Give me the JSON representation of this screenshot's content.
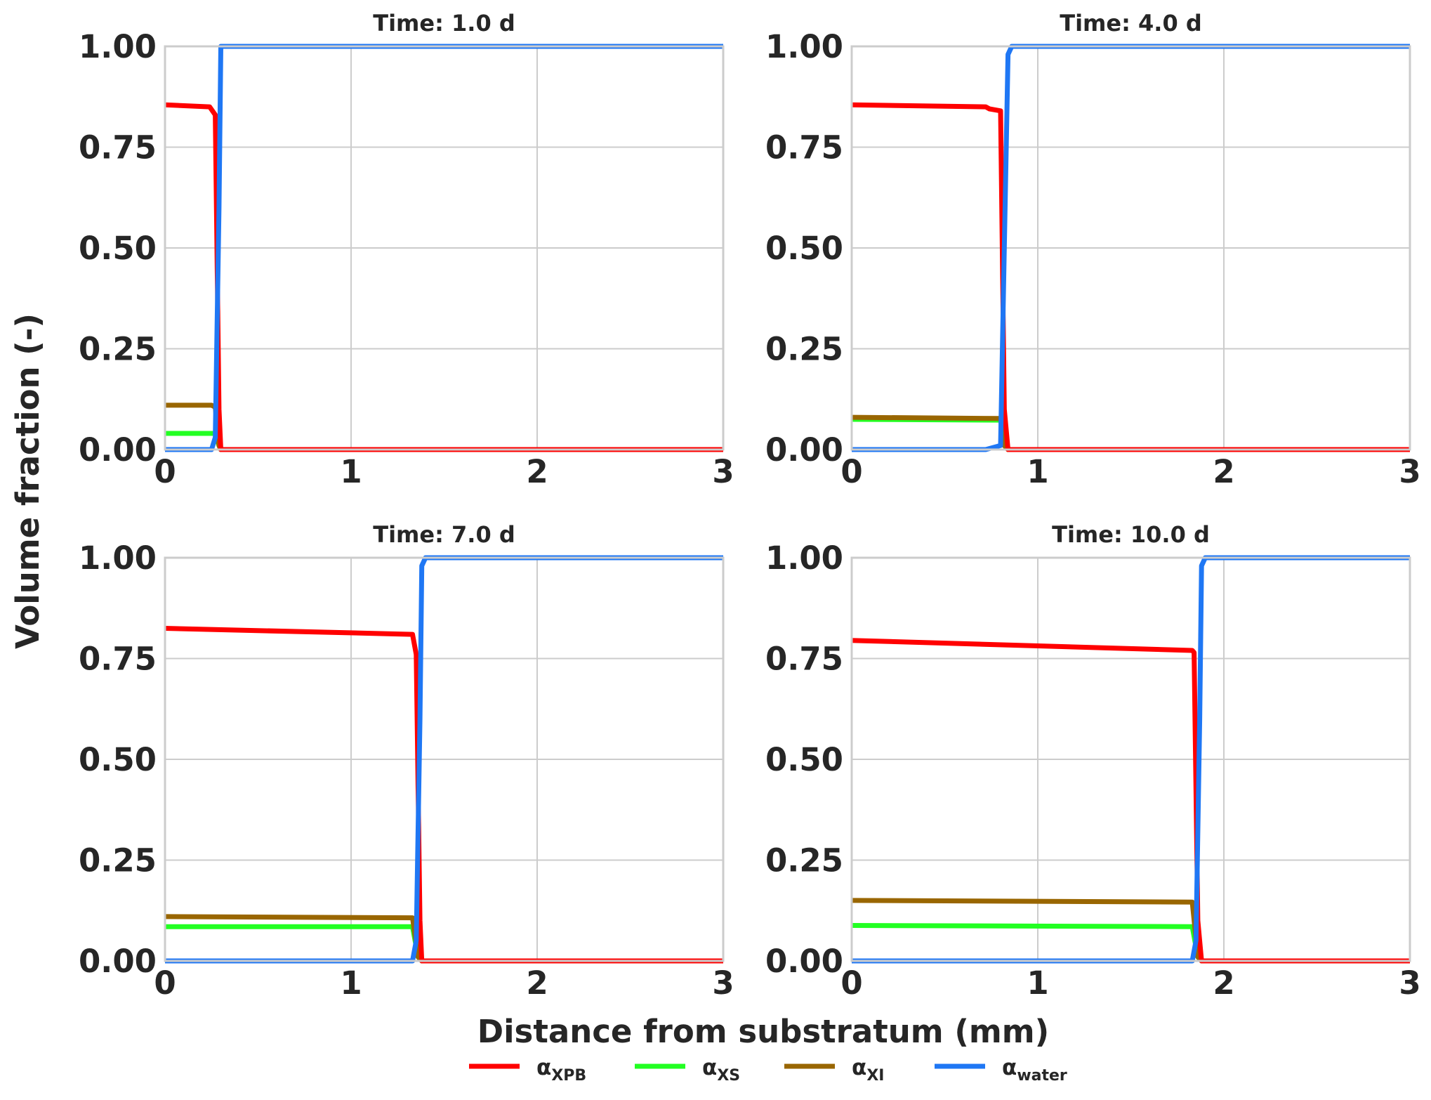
{
  "chart_data": {
    "type": "line",
    "xlabel": "Distance from substratum (mm)",
    "ylabel": "Volume fraction (-)",
    "xlim": [
      0,
      3
    ],
    "ylim": [
      0,
      1
    ],
    "xticks": [
      "0",
      "1",
      "2",
      "3"
    ],
    "yticks": [
      "0.00",
      "0.25",
      "0.50",
      "0.75",
      "1.00"
    ],
    "grid": true,
    "legend": {
      "position": "bottom-center",
      "entries": [
        {
          "key": "xpb",
          "base": "α",
          "sub": "XPB",
          "color": "#ff0000"
        },
        {
          "key": "xs",
          "base": "α",
          "sub": "XS",
          "color": "#22ff22"
        },
        {
          "key": "xi",
          "base": "α",
          "sub": "XI",
          "color": "#996600"
        },
        {
          "key": "water",
          "base": "α",
          "sub": "water",
          "color": "#1f77f4"
        }
      ]
    },
    "panels": [
      {
        "title": "Time: 1.0 d",
        "series": [
          {
            "key": "xs",
            "x": [
              0,
              0.25,
              0.27,
              0.29,
              0.3,
              3.0
            ],
            "y": [
              0.04,
              0.04,
              0.04,
              0.01,
              0.0,
              0.0
            ]
          },
          {
            "key": "xi",
            "x": [
              0,
              0.25,
              0.27,
              0.29,
              0.3,
              3.0
            ],
            "y": [
              0.11,
              0.11,
              0.105,
              0.01,
              0.0,
              0.0
            ]
          },
          {
            "key": "xpb",
            "x": [
              0,
              0.24,
              0.27,
              0.29,
              0.3,
              3.0
            ],
            "y": [
              0.855,
              0.85,
              0.83,
              0.1,
              0.0,
              0.0
            ]
          },
          {
            "key": "water",
            "x": [
              0,
              0.25,
              0.27,
              0.29,
              0.3,
              3.0
            ],
            "y": [
              0.0,
              0.0,
              0.03,
              0.6,
              1.0,
              1.0
            ]
          }
        ]
      },
      {
        "title": "Time: 4.0 d",
        "series": [
          {
            "key": "xs",
            "x": [
              0,
              0.8,
              0.82,
              0.84,
              3.0
            ],
            "y": [
              0.075,
              0.073,
              0.01,
              0.0,
              0.0
            ]
          },
          {
            "key": "xi",
            "x": [
              0,
              0.8,
              0.82,
              0.84,
              3.0
            ],
            "y": [
              0.08,
              0.077,
              0.01,
              0.0,
              0.0
            ]
          },
          {
            "key": "xpb",
            "x": [
              0,
              0.72,
              0.74,
              0.8,
              0.82,
              0.84,
              3.0
            ],
            "y": [
              0.855,
              0.85,
              0.845,
              0.84,
              0.1,
              0.0,
              0.0
            ]
          },
          {
            "key": "water",
            "x": [
              0,
              0.72,
              0.8,
              0.82,
              0.84,
              0.86,
              3.0
            ],
            "y": [
              0.0,
              0.0,
              0.01,
              0.5,
              0.98,
              1.0,
              1.0
            ]
          }
        ]
      },
      {
        "title": "Time: 7.0 d",
        "series": [
          {
            "key": "xs",
            "x": [
              0,
              1.33,
              1.36,
              1.38,
              3.0
            ],
            "y": [
              0.085,
              0.085,
              0.01,
              0.0,
              0.0
            ]
          },
          {
            "key": "xi",
            "x": [
              0,
              1.33,
              1.36,
              1.38,
              3.0
            ],
            "y": [
              0.11,
              0.107,
              0.01,
              0.0,
              0.0
            ]
          },
          {
            "key": "xpb",
            "x": [
              0,
              1.33,
              1.35,
              1.37,
              1.38,
              3.0
            ],
            "y": [
              0.825,
              0.81,
              0.76,
              0.1,
              0.0,
              0.0
            ]
          },
          {
            "key": "water",
            "x": [
              0,
              1.33,
              1.35,
              1.37,
              1.38,
              1.4,
              3.0
            ],
            "y": [
              0.0,
              0.0,
              0.05,
              0.6,
              0.98,
              1.0,
              1.0
            ]
          }
        ]
      },
      {
        "title": "Time: 10.0 d",
        "series": [
          {
            "key": "xs",
            "x": [
              0,
              1.83,
              1.86,
              1.88,
              3.0
            ],
            "y": [
              0.088,
              0.085,
              0.01,
              0.0,
              0.0
            ]
          },
          {
            "key": "xi",
            "x": [
              0,
              1.83,
              1.86,
              1.88,
              3.0
            ],
            "y": [
              0.15,
              0.146,
              0.01,
              0.0,
              0.0
            ]
          },
          {
            "key": "xpb",
            "x": [
              0,
              1.83,
              1.84,
              1.86,
              1.88,
              3.0
            ],
            "y": [
              0.795,
              0.77,
              0.765,
              0.1,
              0.0,
              0.0
            ]
          },
          {
            "key": "water",
            "x": [
              0,
              1.83,
              1.85,
              1.87,
              1.88,
              1.9,
              3.0
            ],
            "y": [
              0.0,
              0.0,
              0.05,
              0.6,
              0.98,
              1.0,
              1.0
            ]
          }
        ]
      }
    ]
  }
}
